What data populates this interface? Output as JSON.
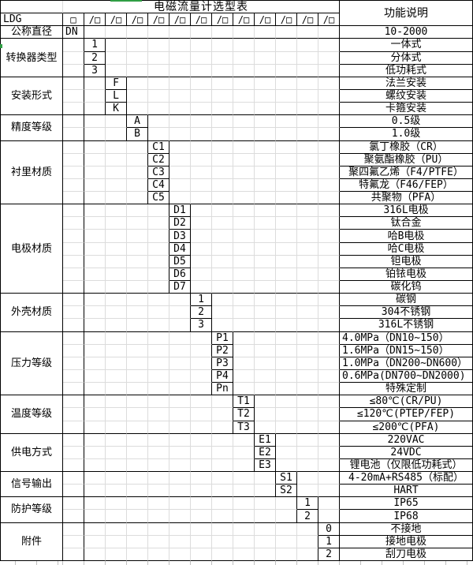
{
  "title": "电磁流量计选型表",
  "function_column_header": "功能说明",
  "model_prefix": "LDG",
  "model_first_slot": "□",
  "model_slot": "/□",
  "model_slot_count": 12,
  "sections": [
    {
      "label": "公称直径",
      "col": 1,
      "code_align": "left",
      "items": [
        {
          "code": "DN",
          "desc": "10-2000"
        }
      ]
    },
    {
      "label": "转换器类型",
      "col": 2,
      "items": [
        {
          "code": "1",
          "desc": "一体式"
        },
        {
          "code": "2",
          "desc": "分体式"
        },
        {
          "code": "3",
          "desc": "低功耗式"
        }
      ]
    },
    {
      "label": "安装形式",
      "col": 3,
      "items": [
        {
          "code": "F",
          "desc": "法兰安装"
        },
        {
          "code": "L",
          "desc": "螺纹安装"
        },
        {
          "code": "K",
          "desc": "卡箍安装"
        }
      ]
    },
    {
      "label": "精度等级",
      "col": 4,
      "items": [
        {
          "code": "A",
          "desc": "0.5级"
        },
        {
          "code": "B",
          "desc": "1.0级"
        }
      ]
    },
    {
      "label": "衬里材质",
      "col": 5,
      "items": [
        {
          "code": "C1",
          "desc": "氯丁橡胶（CR）"
        },
        {
          "code": "C2",
          "desc": "聚氨酯橡胶（PU）"
        },
        {
          "code": "C3",
          "desc": "聚四氟乙烯（F4/PTFE）"
        },
        {
          "code": "C4",
          "desc": "特氟龙（F46/FEP）"
        },
        {
          "code": "C5",
          "desc": "共聚物（PFA）"
        }
      ]
    },
    {
      "label": "电极材质",
      "col": 6,
      "items": [
        {
          "code": "D1",
          "desc": "316L电极"
        },
        {
          "code": "D2",
          "desc": "钛合金"
        },
        {
          "code": "D3",
          "desc": "哈B电极"
        },
        {
          "code": "D4",
          "desc": "哈C电极"
        },
        {
          "code": "D5",
          "desc": "钽电极"
        },
        {
          "code": "D6",
          "desc": "铂铱电极"
        },
        {
          "code": "D7",
          "desc": "碳化钨"
        }
      ]
    },
    {
      "label": "外壳材质",
      "col": 7,
      "items": [
        {
          "code": "1",
          "desc": "碳钢"
        },
        {
          "code": "2",
          "desc": "304不锈钢"
        },
        {
          "code": "3",
          "desc": "316L不锈钢"
        }
      ]
    },
    {
      "label": "压力等级",
      "col": 8,
      "items": [
        {
          "code": "P1",
          "desc": "4.0MPa（DN10~150）",
          "align": "left"
        },
        {
          "code": "P2",
          "desc": "1.6MPa（DN15~150）",
          "align": "left"
        },
        {
          "code": "P3",
          "desc": "1.0MPa（DN200~DN600）",
          "align": "left"
        },
        {
          "code": "P4",
          "desc": "0.6MPa(DN700~DN2000)",
          "align": "left"
        },
        {
          "code": "Pn",
          "desc": "特殊定制"
        }
      ]
    },
    {
      "label": "温度等级",
      "col": 9,
      "items": [
        {
          "code": "T1",
          "desc": "≤80℃(CR/PU)"
        },
        {
          "code": "T2",
          "desc": "≤120℃(PTEP/FEP)"
        },
        {
          "code": "T3",
          "desc": "≤200℃(PFA)"
        }
      ]
    },
    {
      "label": "供电方式",
      "col": 10,
      "items": [
        {
          "code": "E1",
          "desc": "220VAC"
        },
        {
          "code": "E2",
          "desc": "24VDC"
        },
        {
          "code": "E3",
          "desc": "锂电池（仅限低功耗式）"
        }
      ]
    },
    {
      "label": "信号输出",
      "col": 11,
      "items": [
        {
          "code": "S1",
          "desc": "4-20mA+RS485（标配）"
        },
        {
          "code": "S2",
          "desc": "HART"
        }
      ]
    },
    {
      "label": "防护等级",
      "col": 12,
      "items": [
        {
          "code": "1",
          "desc": "IP65"
        },
        {
          "code": "2",
          "desc": "IP68"
        }
      ]
    },
    {
      "label": "附件",
      "col": 13,
      "items": [
        {
          "code": "0",
          "desc": "不接地"
        },
        {
          "code": "1",
          "desc": "接地电极"
        },
        {
          "code": "2",
          "desc": "刮刀电极"
        }
      ]
    }
  ],
  "colors": {
    "border_black": "#000000",
    "grid_gray": "#dcdcdc",
    "green_marker": "#2f9e44",
    "background": "#ffffff"
  }
}
